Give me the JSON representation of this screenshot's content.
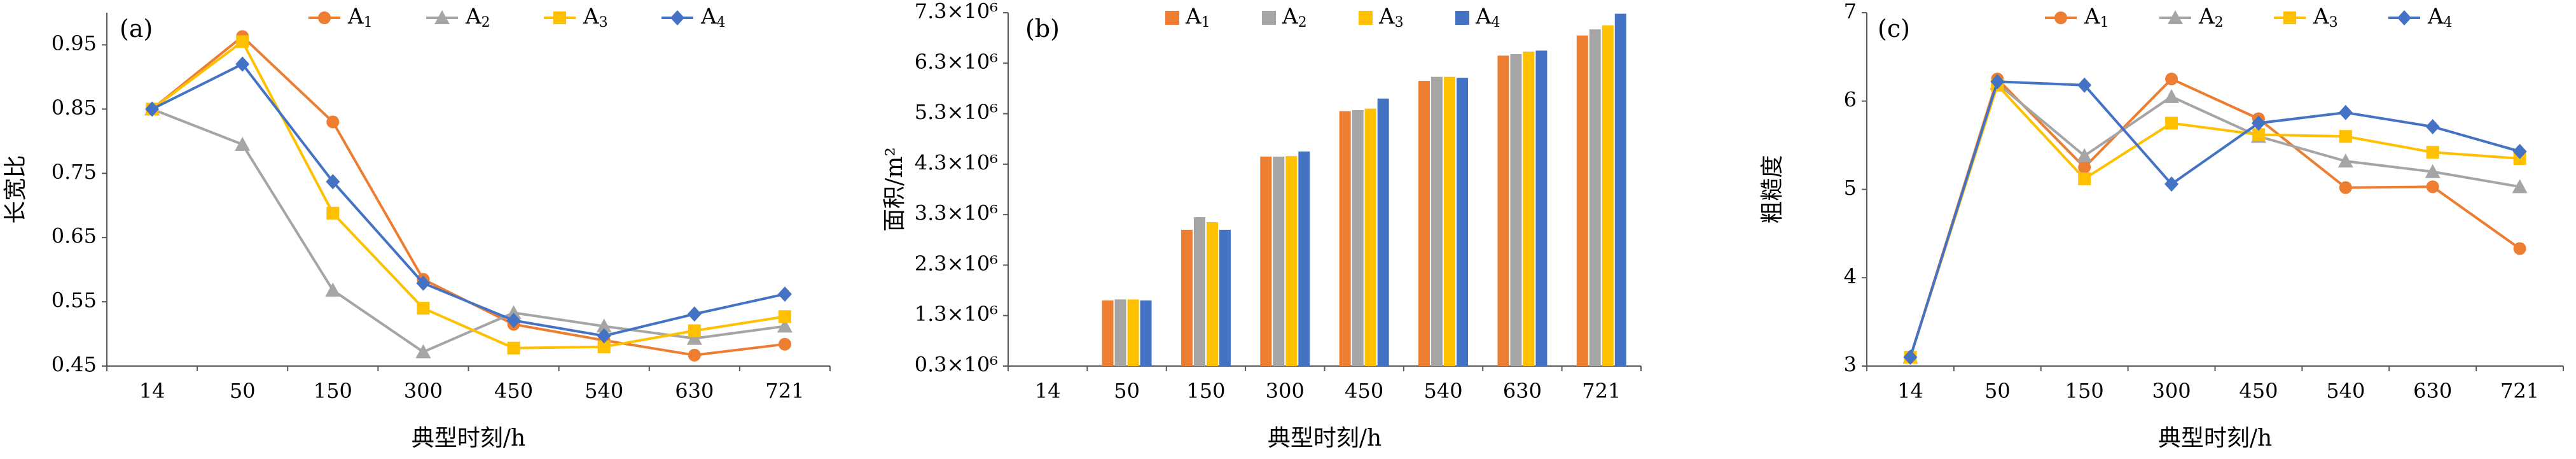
{
  "colors": {
    "A1": "#ed7d31",
    "A2": "#a5a5a5",
    "A3": "#ffc000",
    "A4": "#4472c4",
    "axis": "#595959",
    "text": "#000000"
  },
  "chart_data": [
    {
      "id": "a",
      "type": "line",
      "panel_label": "(a)",
      "xlabel": "典型时刻/h",
      "ylabel": "长宽比",
      "categories": [
        "14",
        "50",
        "150",
        "300",
        "450",
        "540",
        "630",
        "721"
      ],
      "ylim": [
        0.45,
        1.0
      ],
      "yticks": [
        0.45,
        0.55,
        0.65,
        0.75,
        0.85,
        0.95
      ],
      "ytick_labels": [
        "0.45",
        "0.55",
        "0.65",
        "0.75",
        "0.85",
        "0.95"
      ],
      "legend_position": "top",
      "grid": false,
      "series": [
        {
          "name": "A1",
          "marker": "circle",
          "values": [
            0.85,
            0.963,
            0.83,
            0.585,
            0.515,
            0.49,
            0.467,
            0.484
          ]
        },
        {
          "name": "A2",
          "marker": "triangle",
          "values": [
            0.85,
            0.795,
            0.568,
            0.472,
            0.533,
            0.512,
            0.493,
            0.512
          ]
        },
        {
          "name": "A3",
          "marker": "square",
          "values": [
            0.85,
            0.955,
            0.688,
            0.54,
            0.478,
            0.48,
            0.505,
            0.527
          ]
        },
        {
          "name": "A4",
          "marker": "diamond",
          "values": [
            0.85,
            0.92,
            0.737,
            0.579,
            0.521,
            0.497,
            0.531,
            0.562
          ]
        }
      ]
    },
    {
      "id": "b",
      "type": "bar",
      "panel_label": "(b)",
      "xlabel": "典型时刻/h",
      "ylabel": "面积/m²",
      "categories": [
        "14",
        "50",
        "150",
        "300",
        "450",
        "540",
        "630",
        "721"
      ],
      "ylim": [
        300000,
        7300000
      ],
      "yticks": [
        300000,
        1300000,
        2300000,
        3300000,
        4300000,
        5300000,
        6300000,
        7300000
      ],
      "ytick_labels": [
        "0.3×10⁶",
        "1.3×10⁶",
        "2.3×10⁶",
        "3.3×10⁶",
        "4.3×10⁶",
        "5.3×10⁶",
        "6.3×10⁶",
        "7.3×10⁶"
      ],
      "legend_position": "top",
      "grid": false,
      "series": [
        {
          "name": "A1",
          "values": [
            0,
            1600000,
            3000000,
            4450000,
            5350000,
            5950000,
            6450000,
            6850000
          ]
        },
        {
          "name": "A2",
          "values": [
            0,
            1620000,
            3250000,
            4450000,
            5370000,
            6030000,
            6480000,
            6970000
          ]
        },
        {
          "name": "A3",
          "values": [
            0,
            1620000,
            3150000,
            4460000,
            5400000,
            6030000,
            6530000,
            7050000
          ]
        },
        {
          "name": "A4",
          "values": [
            0,
            1600000,
            3000000,
            4550000,
            5600000,
            6010000,
            6550000,
            7280000
          ]
        }
      ]
    },
    {
      "id": "c",
      "type": "line",
      "panel_label": "(c)",
      "xlabel": "典型时刻/h",
      "ylabel": "粗糙度",
      "categories": [
        "14",
        "50",
        "150",
        "300",
        "450",
        "540",
        "630",
        "721"
      ],
      "ylim": [
        3,
        7
      ],
      "yticks": [
        3,
        4,
        5,
        6,
        7
      ],
      "ytick_labels": [
        "3",
        "4",
        "5",
        "6",
        "7"
      ],
      "legend_position": "top",
      "grid": false,
      "series": [
        {
          "name": "A1",
          "marker": "circle",
          "values": [
            3.1,
            6.25,
            5.25,
            6.25,
            5.8,
            5.02,
            5.03,
            4.33
          ]
        },
        {
          "name": "A2",
          "marker": "triangle",
          "values": [
            3.1,
            6.2,
            5.38,
            6.05,
            5.6,
            5.32,
            5.2,
            5.03
          ]
        },
        {
          "name": "A3",
          "marker": "square",
          "values": [
            3.1,
            6.18,
            5.12,
            5.75,
            5.62,
            5.6,
            5.42,
            5.35
          ]
        },
        {
          "name": "A4",
          "marker": "diamond",
          "values": [
            3.1,
            6.22,
            6.18,
            5.06,
            5.75,
            5.87,
            5.71,
            5.43
          ]
        }
      ]
    }
  ]
}
